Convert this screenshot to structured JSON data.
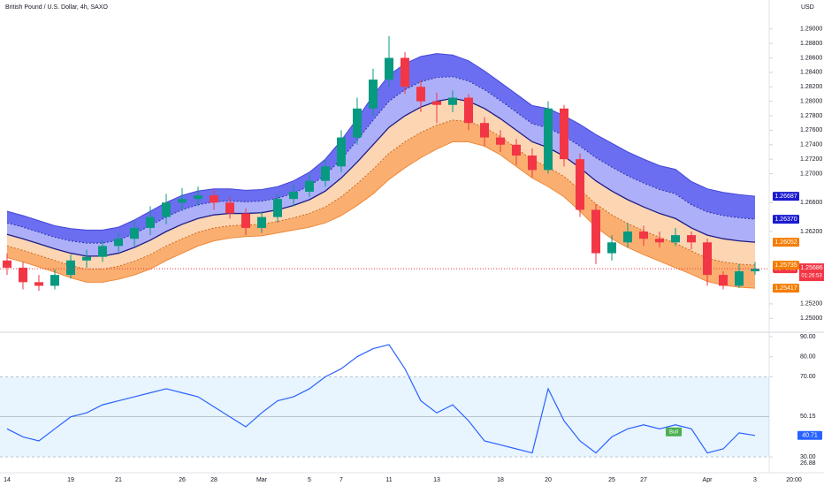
{
  "chart_data": [
    {
      "type": "candlestick",
      "title": "British Pound / U.S. Dollar, 4h, SAXO",
      "currency": "USD",
      "categories": [
        "14",
        null,
        null,
        null,
        "19",
        null,
        null,
        "21",
        null,
        null,
        null,
        "26",
        null,
        "28",
        null,
        null,
        "Mar",
        null,
        null,
        "5",
        null,
        "7",
        null,
        null,
        "11",
        null,
        null,
        "13",
        null,
        null,
        null,
        "18",
        null,
        null,
        "20",
        null,
        null,
        null,
        "25",
        null,
        "27",
        null,
        null,
        null,
        "Apr",
        null,
        null,
        "3"
      ],
      "time_label": "20:00",
      "up_color": "#089981",
      "down_color": "#f23645",
      "candles": [
        [
          1.258,
          1.259,
          1.256,
          1.257
        ],
        [
          1.257,
          1.2578,
          1.254,
          1.255
        ],
        [
          1.255,
          1.256,
          1.2538,
          1.2545
        ],
        [
          1.2545,
          1.2568,
          1.254,
          1.256
        ],
        [
          1.256,
          1.2588,
          1.2555,
          1.258
        ],
        [
          1.258,
          1.2595,
          1.257,
          1.2585
        ],
        [
          1.2585,
          1.2608,
          1.2578,
          1.26
        ],
        [
          1.26,
          1.2618,
          1.2592,
          1.261
        ],
        [
          1.261,
          1.2635,
          1.26,
          1.2625
        ],
        [
          1.2625,
          1.2655,
          1.2615,
          1.264
        ],
        [
          1.264,
          1.2672,
          1.263,
          1.266
        ],
        [
          1.266,
          1.268,
          1.2648,
          1.2665
        ],
        [
          1.2665,
          1.2682,
          1.2655,
          1.267
        ],
        [
          1.267,
          1.2678,
          1.265,
          1.266
        ],
        [
          1.266,
          1.2668,
          1.2638,
          1.2645
        ],
        [
          1.2645,
          1.2652,
          1.2615,
          1.2625
        ],
        [
          1.2625,
          1.2648,
          1.2618,
          1.264
        ],
        [
          1.264,
          1.2672,
          1.2632,
          1.2665
        ],
        [
          1.2665,
          1.2685,
          1.2655,
          1.2675
        ],
        [
          1.2675,
          1.27,
          1.2668,
          1.269
        ],
        [
          1.269,
          1.272,
          1.2682,
          1.271
        ],
        [
          1.271,
          1.276,
          1.2702,
          1.275
        ],
        [
          1.275,
          1.2805,
          1.274,
          1.279
        ],
        [
          1.279,
          1.2845,
          1.278,
          1.283
        ],
        [
          1.283,
          1.289,
          1.282,
          1.286
        ],
        [
          1.286,
          1.2868,
          1.281,
          1.282
        ],
        [
          1.282,
          1.283,
          1.2785,
          1.28
        ],
        [
          1.28,
          1.2812,
          1.277,
          1.2795
        ],
        [
          1.2795,
          1.2815,
          1.2785,
          1.2805
        ],
        [
          1.2805,
          1.281,
          1.276,
          1.277
        ],
        [
          1.277,
          1.2778,
          1.2738,
          1.275
        ],
        [
          1.275,
          1.276,
          1.273,
          1.274
        ],
        [
          1.274,
          1.2748,
          1.2712,
          1.2725
        ],
        [
          1.2725,
          1.2735,
          1.2695,
          1.2705
        ],
        [
          1.2705,
          1.28,
          1.27,
          1.279
        ],
        [
          1.279,
          1.2795,
          1.271,
          1.272
        ],
        [
          1.272,
          1.2728,
          1.264,
          1.265
        ],
        [
          1.265,
          1.2658,
          1.2575,
          1.259
        ],
        [
          1.259,
          1.2615,
          1.258,
          1.2605
        ],
        [
          1.2605,
          1.2632,
          1.2598,
          1.262
        ],
        [
          1.262,
          1.2628,
          1.26,
          1.261
        ],
        [
          1.261,
          1.262,
          1.2598,
          1.2605
        ],
        [
          1.2605,
          1.2625,
          1.26,
          1.2615
        ],
        [
          1.2615,
          1.262,
          1.2595,
          1.2605
        ],
        [
          1.2605,
          1.261,
          1.2545,
          1.256
        ],
        [
          1.256,
          1.2565,
          1.254,
          1.2545
        ],
        [
          1.2545,
          1.2575,
          1.2542,
          1.2565
        ],
        [
          1.2565,
          1.2578,
          1.256,
          1.25686
        ]
      ],
      "envelope": {
        "upper": [
          1.2648,
          1.2642,
          1.2635,
          1.2628,
          1.2624,
          1.2622,
          1.2622,
          1.2626,
          1.2636,
          1.2648,
          1.266,
          1.267,
          1.2676,
          1.2679,
          1.2679,
          1.2677,
          1.2678,
          1.2682,
          1.269,
          1.2702,
          1.272,
          1.2746,
          1.2776,
          1.2808,
          1.2836,
          1.2852,
          1.2862,
          1.2866,
          1.2864,
          1.2856,
          1.2842,
          1.2826,
          1.281,
          1.2794,
          1.279,
          1.278,
          1.2768,
          1.2754,
          1.2742,
          1.273,
          1.272,
          1.2711,
          1.2706,
          1.2689,
          1.2679,
          1.2674,
          1.2671,
          1.26687
        ],
        "upper_inner": [
          1.2632,
          1.2626,
          1.2619,
          1.2612,
          1.2607,
          1.2604,
          1.2604,
          1.2608,
          1.2617,
          1.2628,
          1.264,
          1.265,
          1.2657,
          1.2661,
          1.2662,
          1.2661,
          1.2662,
          1.2666,
          1.2673,
          1.2683,
          1.2698,
          1.272,
          1.2746,
          1.2774,
          1.28,
          1.2816,
          1.2827,
          1.2833,
          1.2834,
          1.2828,
          1.2816,
          1.2801,
          1.2785,
          1.2769,
          1.2763,
          1.2752,
          1.2738,
          1.2722,
          1.2709,
          1.2697,
          1.2687,
          1.2678,
          1.2672,
          1.2657,
          1.2647,
          1.2642,
          1.2639,
          1.2637
        ],
        "middle": [
          1.2616,
          1.261,
          1.2603,
          1.2596,
          1.259,
          1.2586,
          1.2586,
          1.259,
          1.2598,
          1.2608,
          1.262,
          1.263,
          1.2638,
          1.2643,
          1.2645,
          1.2645,
          1.2646,
          1.265,
          1.2656,
          1.2664,
          1.2676,
          1.2694,
          1.2716,
          1.274,
          1.2764,
          1.278,
          1.2792,
          1.28,
          1.2804,
          1.28,
          1.279,
          1.2776,
          1.276,
          1.2744,
          1.2736,
          1.2724,
          1.2708,
          1.269,
          1.2676,
          1.2664,
          1.2654,
          1.2645,
          1.2638,
          1.2625,
          1.2615,
          1.261,
          1.2607,
          1.26052
        ],
        "lower_inner": [
          1.26,
          1.2594,
          1.2587,
          1.258,
          1.2573,
          1.2568,
          1.2568,
          1.2572,
          1.2579,
          1.2588,
          1.26,
          1.261,
          1.2619,
          1.2625,
          1.2628,
          1.2629,
          1.263,
          1.2634,
          1.2639,
          1.2645,
          1.2654,
          1.2668,
          1.2686,
          1.2706,
          1.2728,
          1.2744,
          1.2757,
          1.2767,
          1.2774,
          1.2772,
          1.2764,
          1.2751,
          1.2735,
          1.2719,
          1.2709,
          1.2696,
          1.2678,
          1.2658,
          1.2643,
          1.2631,
          1.2621,
          1.2612,
          1.2604,
          1.2593,
          1.2583,
          1.2578,
          1.2575,
          1.25735
        ],
        "lower": [
          1.2584,
          1.2578,
          1.2571,
          1.2564,
          1.2556,
          1.255,
          1.255,
          1.2554,
          1.256,
          1.2568,
          1.258,
          1.259,
          1.26,
          1.2607,
          1.2611,
          1.2613,
          1.2614,
          1.2618,
          1.2622,
          1.2626,
          1.2632,
          1.2642,
          1.2656,
          1.2672,
          1.2692,
          1.2708,
          1.2722,
          1.2734,
          1.2744,
          1.2744,
          1.2738,
          1.2726,
          1.271,
          1.2694,
          1.2682,
          1.2668,
          1.2648,
          1.2626,
          1.261,
          1.2598,
          1.2588,
          1.2579,
          1.257,
          1.2561,
          1.2551,
          1.2546,
          1.2543,
          1.25417
        ]
      },
      "fill_colors": [
        "#5b5ef0",
        "#a4a7f7",
        "#fcd0ab",
        "#f9a660"
      ],
      "line_colors": [
        "#4347d9",
        "#2b2fa8",
        "#1c1c86",
        "#c86a1e",
        "#ef8a3a"
      ],
      "ylim": [
        1.2482,
        1.294
      ],
      "yticks": [
        {
          "value": 1.29,
          "label": "1.29000"
        },
        {
          "value": 1.288,
          "label": "1.28800"
        },
        {
          "value": 1.286,
          "label": "1.28600"
        },
        {
          "value": 1.284,
          "label": "1.28400"
        },
        {
          "value": 1.282,
          "label": "1.28200"
        },
        {
          "value": 1.28,
          "label": "1.28000"
        },
        {
          "value": 1.278,
          "label": "1.27800"
        },
        {
          "value": 1.276,
          "label": "1.27600"
        },
        {
          "value": 1.274,
          "label": "1.27400"
        },
        {
          "value": 1.272,
          "label": "1.27200"
        },
        {
          "value": 1.27,
          "label": "1.27000"
        },
        {
          "value": 1.266,
          "label": "1.26600"
        },
        {
          "value": 1.262,
          "label": "1.26200"
        },
        {
          "value": 1.252,
          "label": "1.25200"
        },
        {
          "value": 1.25,
          "label": "1.25000"
        }
      ],
      "price_labels": [
        {
          "value": 1.26687,
          "label": "1.26687",
          "color": "#1b1bd0"
        },
        {
          "value": 1.2637,
          "label": "1.26370",
          "color": "#1b1bd0"
        },
        {
          "value": 1.26052,
          "label": "1.26052",
          "color": "#f57c00"
        },
        {
          "value": 1.25735,
          "label": "1.25735",
          "color": "#f57c00"
        },
        {
          "value": 1.25417,
          "label": "1.25417",
          "color": "#f57c00"
        }
      ],
      "last_price": {
        "symbol": "GBPUSD",
        "value": 1.25686,
        "label": "1.25686",
        "countdown": "01:26:53",
        "color": "#f23645"
      }
    },
    {
      "type": "line",
      "color": "#2962ff",
      "values": [
        44,
        40,
        38,
        44,
        50,
        52,
        56,
        58,
        60,
        62,
        64,
        62,
        60,
        55,
        50,
        45,
        52,
        58,
        60,
        64,
        70,
        74,
        80,
        84,
        86,
        74,
        58,
        52,
        56,
        48,
        38,
        36,
        34,
        32,
        64,
        48,
        38,
        32,
        40,
        44,
        46,
        44,
        46,
        44,
        32,
        34,
        42,
        40.71
      ],
      "ylim": [
        22.1,
        92.2
      ],
      "yticks": [
        {
          "value": 90,
          "label": "90.00"
        },
        {
          "value": 80,
          "label": "80.00"
        },
        {
          "value": 70,
          "label": "70.00"
        },
        {
          "value": 30,
          "label": "30.00"
        }
      ],
      "band": [
        30,
        70
      ],
      "midline": 50,
      "ma_labels": [
        {
          "value": 50.15,
          "label": "50.15"
        },
        {
          "value": 26.88,
          "label": "26.88"
        }
      ],
      "signal": "Bull"
    }
  ]
}
